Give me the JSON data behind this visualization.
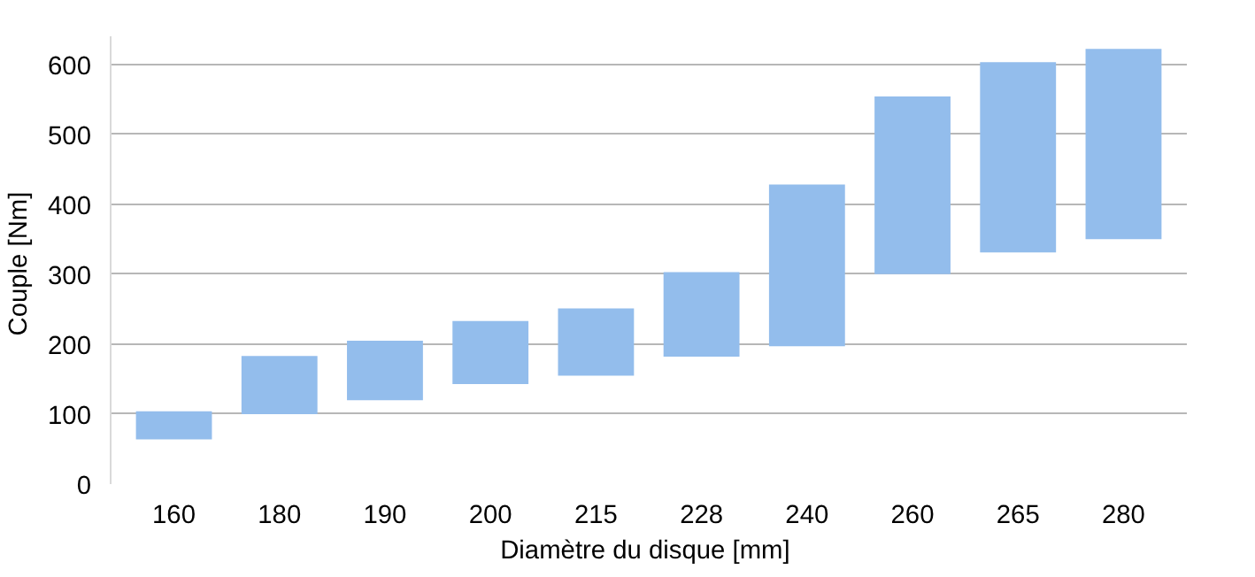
{
  "chart_data": {
    "type": "bar",
    "xlabel": "Diamètre du disque  [mm]",
    "ylabel": "Couple  [Nm]",
    "categories": [
      "160",
      "180",
      "190",
      "200",
      "215",
      "228",
      "240",
      "260",
      "265",
      "280"
    ],
    "base": [
      64,
      100,
      120,
      143,
      155,
      182,
      197,
      300,
      331,
      350
    ],
    "values": [
      40,
      83,
      85,
      90,
      96,
      121,
      231,
      254,
      272,
      272
    ],
    "color": "#93bdec",
    "ylim": [
      0,
      640
    ],
    "yticks": [
      0,
      100,
      200,
      300,
      400,
      500,
      600
    ],
    "grid": "y"
  }
}
